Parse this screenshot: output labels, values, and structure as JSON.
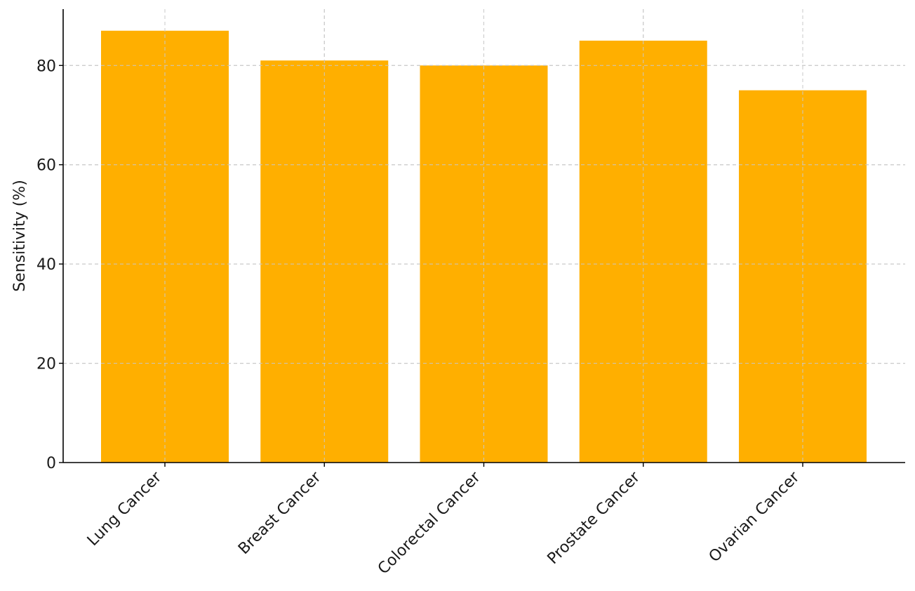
{
  "colors": {
    "bar": "#FFAF00",
    "axis": "#000000",
    "grid": "#c8c8c8",
    "text": "#1a1a1a"
  },
  "chart_data": {
    "type": "bar",
    "title": "",
    "xlabel": "",
    "ylabel": "Sensitivity (%)",
    "categories": [
      "Lung Cancer",
      "Breast Cancer",
      "Colorectal Cancer",
      "Prostate Cancer",
      "Ovarian Cancer"
    ],
    "values": [
      87,
      81,
      80,
      85,
      75
    ],
    "ylim": [
      0,
      91.35
    ],
    "yticks": [
      0,
      20,
      40,
      60,
      80
    ],
    "ytick_labels": [
      "0",
      "20",
      "40",
      "60",
      "80"
    ],
    "grid": true,
    "grid_style": "dashed",
    "legend": "none"
  }
}
